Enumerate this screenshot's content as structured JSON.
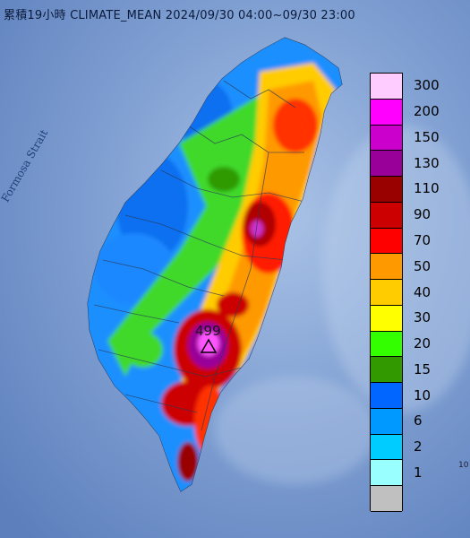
{
  "title": "累積19小時 CLIMATE_MEAN 2024/09/30 04:00~09/30 23:00",
  "sea_label": "Formosa Strait",
  "max_marker": {
    "value": "499",
    "icon": "triangle-icon"
  },
  "edge_text": "10",
  "legend": {
    "unit_levels": [
      {
        "label": "300",
        "color": "#ffccff"
      },
      {
        "label": "200",
        "color": "#ff00ff"
      },
      {
        "label": "150",
        "color": "#cc00cc"
      },
      {
        "label": "130",
        "color": "#990099"
      },
      {
        "label": "110",
        "color": "#990000"
      },
      {
        "label": "90",
        "color": "#cc0000"
      },
      {
        "label": "70",
        "color": "#ff0000"
      },
      {
        "label": "50",
        "color": "#ff9900"
      },
      {
        "label": "40",
        "color": "#ffcc00"
      },
      {
        "label": "30",
        "color": "#ffff00"
      },
      {
        "label": "20",
        "color": "#33ff00"
      },
      {
        "label": "15",
        "color": "#339900"
      },
      {
        "label": "10",
        "color": "#0066ff"
      },
      {
        "label": "6",
        "color": "#0099ff"
      },
      {
        "label": "2",
        "color": "#00ccff"
      },
      {
        "label": "1",
        "color": "#99ffff"
      },
      {
        "label": "",
        "color": "#c0c0c0"
      }
    ]
  }
}
